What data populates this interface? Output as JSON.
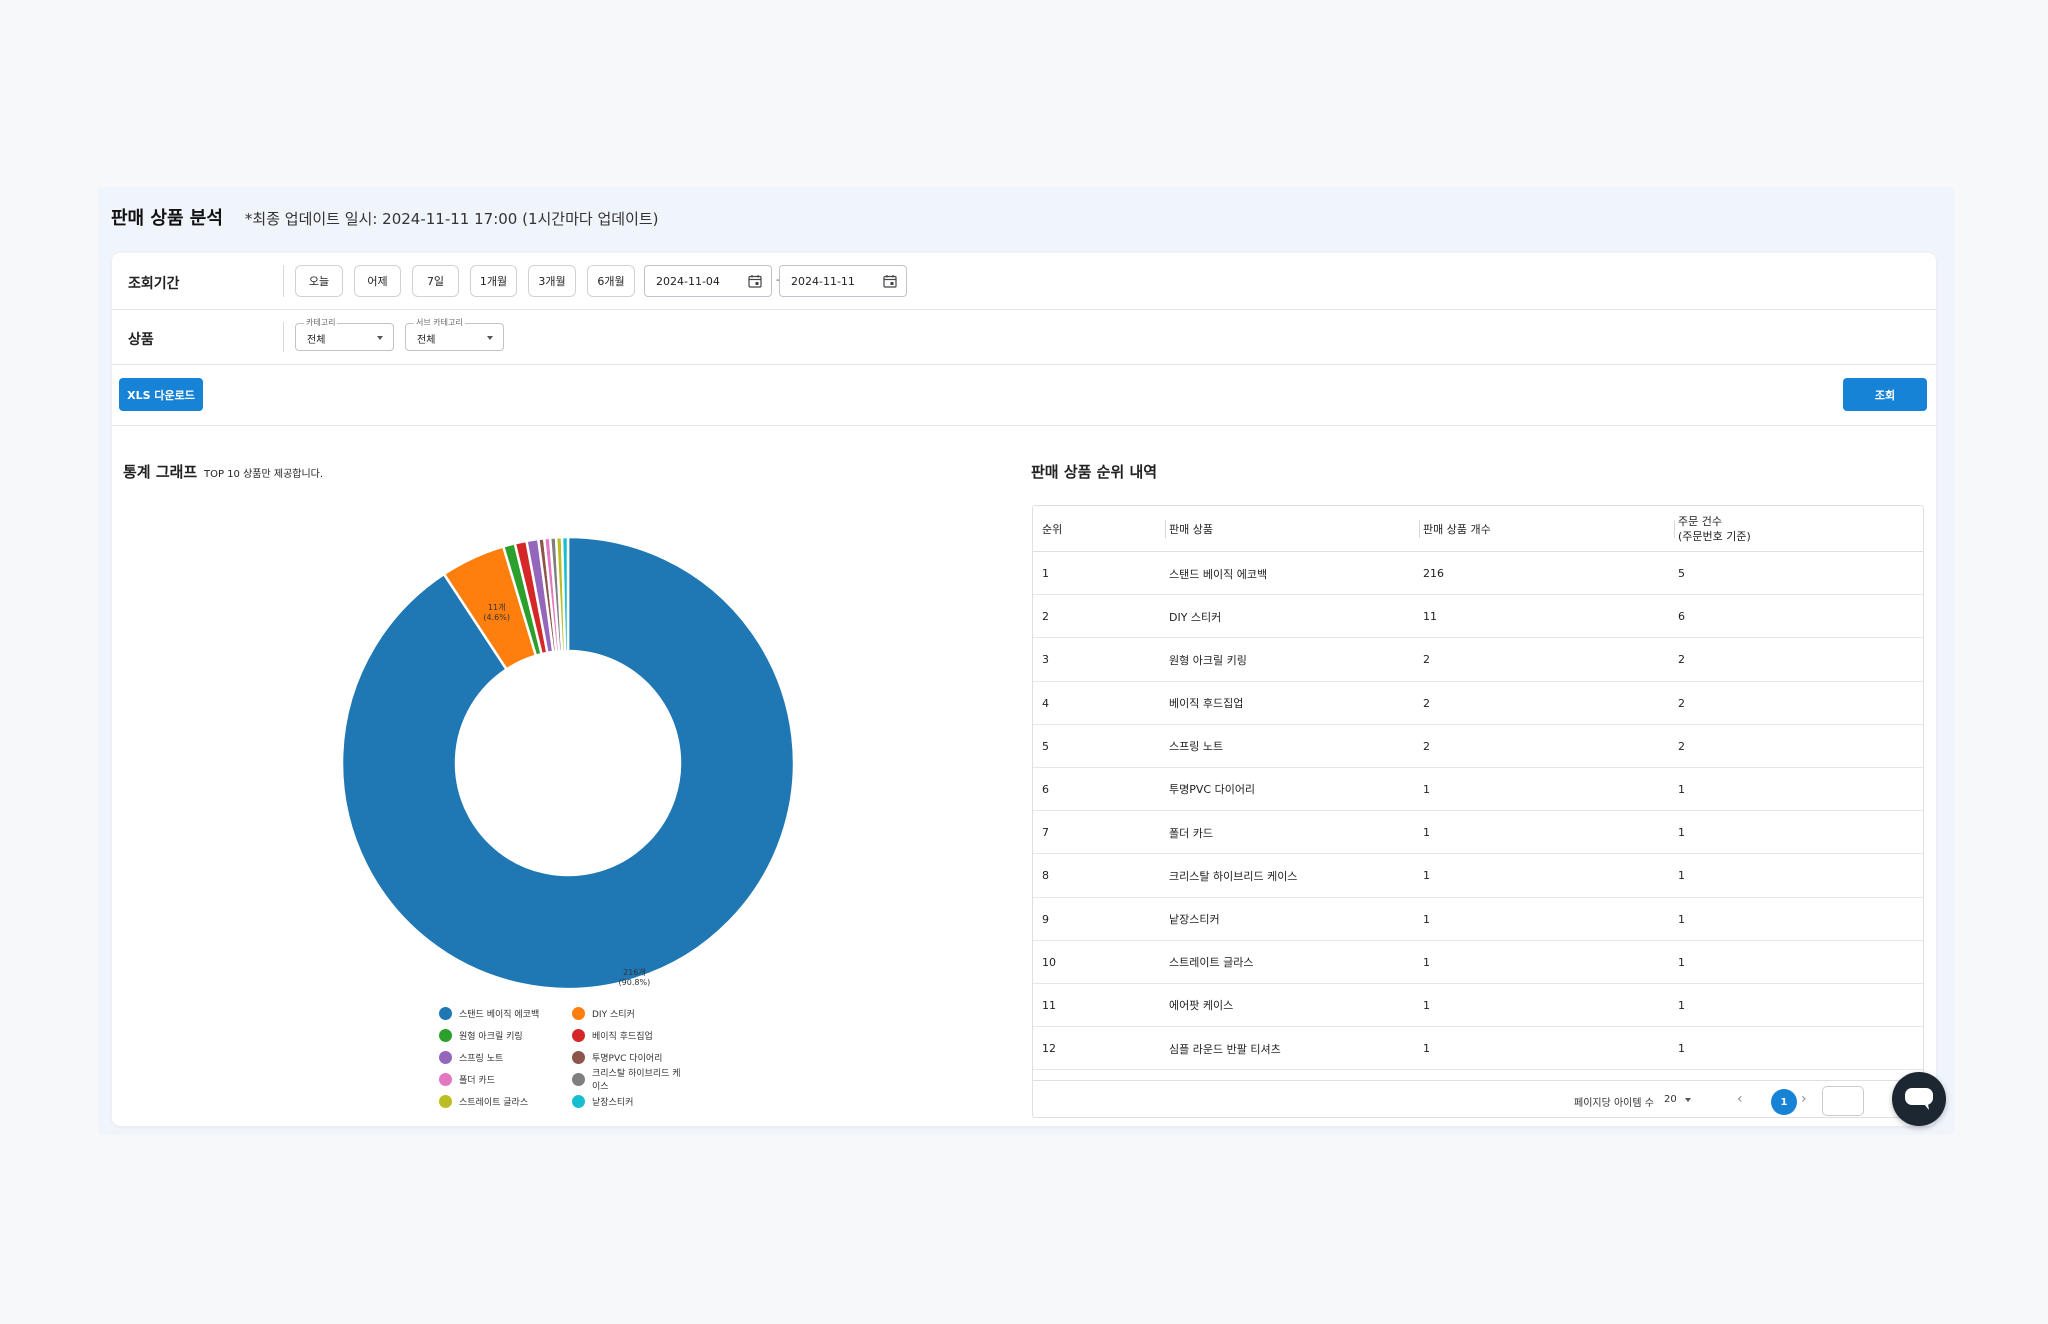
{
  "page": {
    "title": "판매 상품 분석",
    "update_note": "*최종 업데이트 일시: 2024-11-11 17:00 (1시간마다 업데이트)"
  },
  "filters": {
    "period_label": "조회기간",
    "period_buttons": [
      "오늘",
      "어제",
      "7일",
      "1개월",
      "3개월",
      "6개월"
    ],
    "date_start": "2024-11-04",
    "date_sep": "-",
    "date_end": "2024-11-11",
    "product_label": "상품",
    "category": {
      "legend": "카테고리",
      "value": "전체"
    },
    "subcategory": {
      "legend": "서브 카테고리",
      "value": "전체"
    }
  },
  "actions": {
    "download_label": "XLS 다운로드",
    "search_label": "조회"
  },
  "chart_section": {
    "title": "통계 그래프",
    "note": "TOP 10 상품만 제공합니다."
  },
  "chart_data": {
    "type": "pie",
    "categories": [
      "스탠드 베이직 에코백",
      "DIY 스티커",
      "원형 아크릴 키링",
      "베이직 후드집업",
      "스프링 노트",
      "투명PVC 다이어리",
      "폴더 카드",
      "크리스탈 하이브리드 케이스",
      "스트레이트 글라스",
      "낱장스티커"
    ],
    "values": [
      216,
      11,
      2,
      2,
      2,
      1,
      1,
      1,
      1,
      1
    ],
    "colors": [
      "#1f77b4",
      "#ff7f0e",
      "#2ca02c",
      "#d62728",
      "#9467bd",
      "#8c564b",
      "#e377c2",
      "#7f7f7f",
      "#bcbd22",
      "#17becf"
    ],
    "data_labels": [
      {
        "count": "216개",
        "pct": "(90.8%)"
      },
      {
        "count": "11개",
        "pct": "(4.6%)"
      }
    ],
    "donut": true,
    "legend_position": "bottom"
  },
  "table_section": {
    "title": "판매 상품 순위 내역",
    "headers": [
      "순위",
      "판매 상품",
      "판매 상품 개수",
      "주문 건수",
      "(주문번호 기준)"
    ],
    "rows": [
      {
        "rank": "1",
        "name": "스탠드 베이직 에코백",
        "qty": "216",
        "orders": "5"
      },
      {
        "rank": "2",
        "name": "DIY 스티커",
        "qty": "11",
        "orders": "6"
      },
      {
        "rank": "3",
        "name": "원형 아크릴 키링",
        "qty": "2",
        "orders": "2"
      },
      {
        "rank": "4",
        "name": "베이직 후드집업",
        "qty": "2",
        "orders": "2"
      },
      {
        "rank": "5",
        "name": "스프링 노트",
        "qty": "2",
        "orders": "2"
      },
      {
        "rank": "6",
        "name": "투명PVC 다이어리",
        "qty": "1",
        "orders": "1"
      },
      {
        "rank": "7",
        "name": "폴더 카드",
        "qty": "1",
        "orders": "1"
      },
      {
        "rank": "8",
        "name": "크리스탈 하이브리드 케이스",
        "qty": "1",
        "orders": "1"
      },
      {
        "rank": "9",
        "name": "낱장스티커",
        "qty": "1",
        "orders": "1"
      },
      {
        "rank": "10",
        "name": "스트레이트 글라스",
        "qty": "1",
        "orders": "1"
      },
      {
        "rank": "11",
        "name": "에어팟 케이스",
        "qty": "1",
        "orders": "1"
      },
      {
        "rank": "12",
        "name": "심플 라운드 반팔 티셔츠",
        "qty": "1",
        "orders": "1"
      }
    ],
    "pagination": {
      "per_page_label": "페이지당 아이템 수",
      "per_page_value": "20",
      "current_page": "1",
      "prev": "‹",
      "next": "›"
    }
  },
  "icons": {
    "calendar": "calendar-icon",
    "chat": "chat-icon",
    "caret": "chevron-down-icon"
  },
  "theme": {
    "primary": "#1683d6",
    "chat_fab": "#1c2732"
  }
}
